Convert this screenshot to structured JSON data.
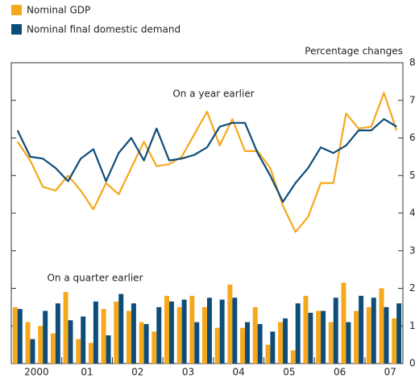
{
  "chart_data": {
    "type": "combo",
    "y_label": "Percentage changes",
    "annotations": [
      "On a year earlier",
      "On a quarter earlier"
    ],
    "categories": [
      "2000",
      null,
      null,
      null,
      "01",
      null,
      null,
      null,
      "02",
      null,
      null,
      null,
      "03",
      null,
      null,
      null,
      "04",
      null,
      null,
      null,
      "05",
      null,
      null,
      null,
      "06",
      null,
      null,
      null,
      "07",
      null,
      null
    ],
    "series": [
      {
        "name": "Nominal GDP",
        "color": "#f5a81c",
        "values": [
          5.9,
          5.4,
          4.7,
          4.6,
          5.0,
          4.6,
          4.1,
          4.8,
          4.5,
          5.2,
          5.9,
          5.25,
          5.3,
          5.5,
          6.1,
          6.7,
          5.8,
          6.5,
          5.65,
          5.65,
          5.2,
          4.2,
          3.5,
          3.9,
          4.8,
          4.8,
          6.65,
          6.25,
          6.3,
          7.2,
          6.2
        ],
        "quarter_values": [
          1.5,
          1.1,
          1.0,
          0.8,
          1.9,
          0.65,
          0.55,
          1.45,
          1.65,
          1.4,
          1.1,
          0.85,
          1.8,
          1.5,
          1.8,
          1.5,
          0.95,
          2.1,
          0.95,
          1.5,
          0.5,
          1.1,
          0.35,
          1.8,
          1.4,
          1.1,
          2.15,
          1.4,
          1.5,
          2.0,
          1.2
        ]
      },
      {
        "name": "Nominal final domestic demand",
        "color": "#0e4c7a",
        "values": [
          6.2,
          5.5,
          5.45,
          5.2,
          4.85,
          5.45,
          5.7,
          4.85,
          5.6,
          6.0,
          5.4,
          6.25,
          5.4,
          5.45,
          5.55,
          5.75,
          6.3,
          6.4,
          6.4,
          5.6,
          5.0,
          4.3,
          4.8,
          5.2,
          5.75,
          5.6,
          5.8,
          6.2,
          6.2,
          6.5,
          6.3
        ],
        "quarter_values": [
          1.45,
          0.65,
          1.4,
          1.6,
          1.15,
          1.25,
          1.65,
          0.75,
          1.85,
          1.6,
          1.05,
          1.5,
          1.65,
          1.7,
          1.1,
          1.75,
          1.7,
          1.75,
          1.1,
          1.05,
          0.85,
          1.2,
          1.6,
          1.35,
          1.4,
          1.75,
          1.1,
          1.8,
          1.75,
          1.5,
          1.6
        ]
      }
    ],
    "ylim": [
      0,
      8
    ],
    "yticks": [
      0,
      1,
      2,
      3,
      4,
      5,
      6,
      7,
      8
    ]
  }
}
